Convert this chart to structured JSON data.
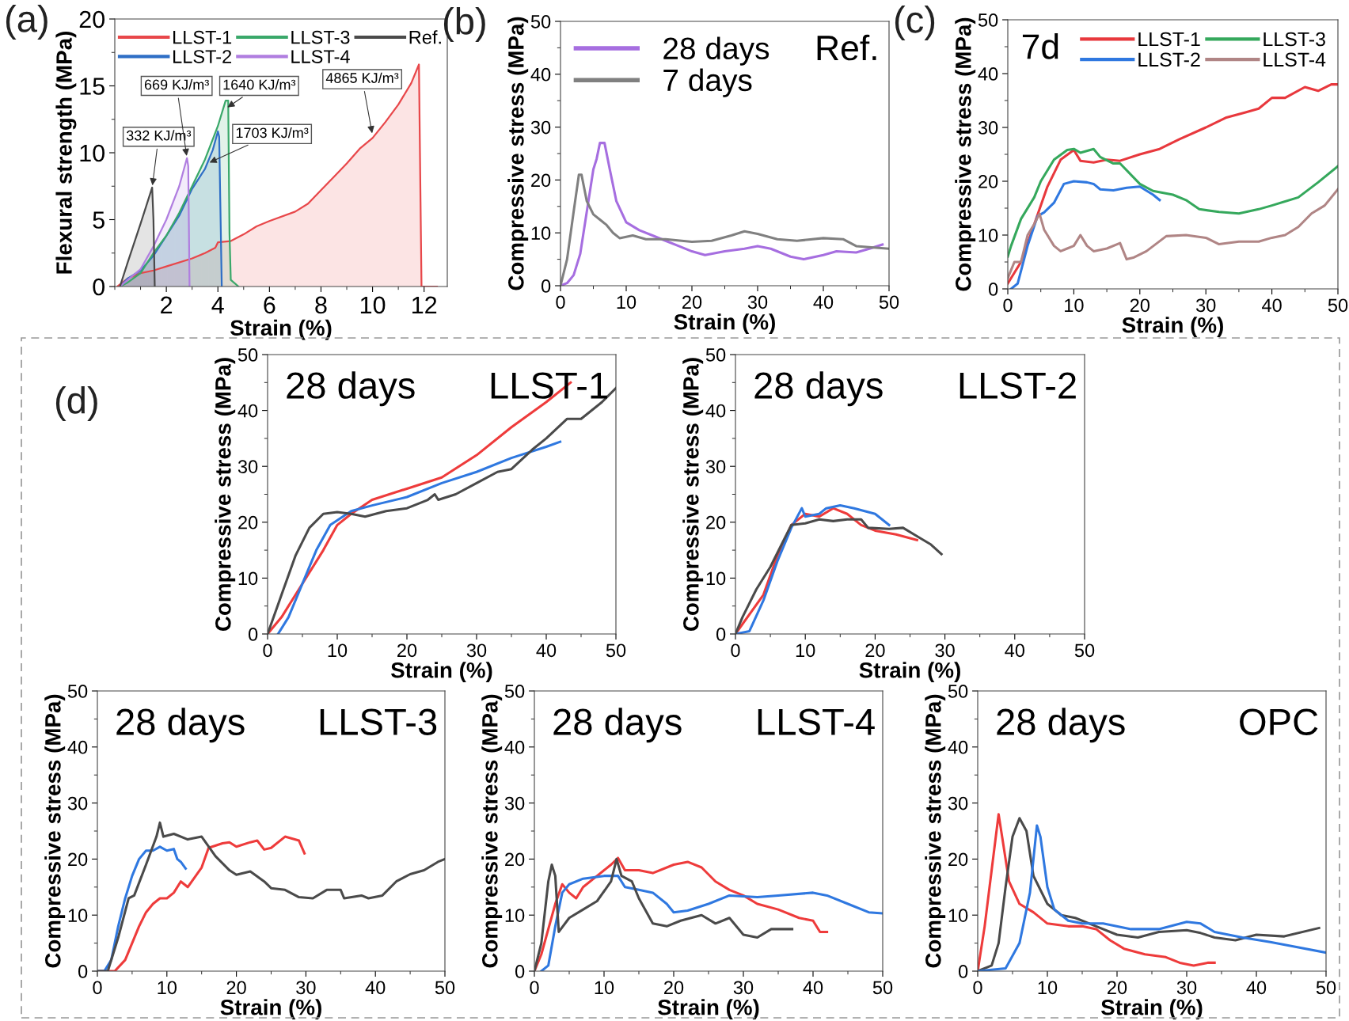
{
  "chart_data": [
    {
      "type": "area",
      "title": "(a)",
      "xlabel": "Strain (%)",
      "ylabel": "Flexural strength (MPa)",
      "xlim": [
        0,
        12.9
      ],
      "ylim": [
        0,
        20
      ],
      "xticks": [
        2,
        4,
        6,
        8,
        10,
        12
      ],
      "yticks": [
        0,
        5,
        10,
        15,
        20
      ],
      "legend": "top",
      "grid": false,
      "annotations": [
        {
          "text": "332 KJ/m³",
          "x": 1.45,
          "y": 7.4
        },
        {
          "text": "669 KJ/m³",
          "x": 2.8,
          "y": 9.6
        },
        {
          "text": "1640 KJ/m³",
          "x": 4.3,
          "y": 13.3
        },
        {
          "text": "1703 KJ/m³",
          "x": 3.6,
          "y": 9.2
        },
        {
          "text": "4865 KJ/m³",
          "x": 10.0,
          "y": 11.3
        }
      ],
      "series": [
        {
          "name": "LLST-1",
          "color": "#e8474a",
          "x": [
            0.1,
            0.5,
            1,
            1.5,
            2,
            3,
            3.5,
            3.9,
            4,
            4.5,
            5,
            5.5,
            6,
            7,
            7.5,
            8,
            8.5,
            9,
            9.5,
            10,
            10.5,
            11,
            11.5,
            11.8,
            11.9,
            12.5
          ],
          "values": [
            0,
            0.6,
            1.0,
            1.2,
            1.5,
            2.1,
            2.5,
            2.9,
            3.3,
            3.4,
            3.9,
            4.5,
            4.9,
            5.6,
            6.2,
            7.2,
            8.2,
            9.2,
            10.3,
            11.1,
            12.3,
            13.6,
            15.2,
            16.6,
            0,
            0
          ]
        },
        {
          "name": "LLST-2",
          "color": "#2f6fc6",
          "x": [
            0.2,
            0.5,
            1,
            1.5,
            2,
            2.5,
            3,
            3.5,
            3.8,
            4.0,
            4.05,
            4.15
          ],
          "values": [
            0,
            0.6,
            1.2,
            2.3,
            3.8,
            5.3,
            7.3,
            8.8,
            10.2,
            11.6,
            11.2,
            0
          ]
        },
        {
          "name": "LLST-3",
          "color": "#3aa86a",
          "x": [
            0.2,
            0.5,
            1,
            1.5,
            2,
            2.5,
            3,
            3.5,
            4,
            4.3,
            4.4,
            4.45,
            4.5,
            4.8
          ],
          "values": [
            0,
            0.3,
            1.0,
            2.5,
            3.8,
            5.5,
            7.5,
            9.5,
            12,
            13.9,
            13.9,
            4,
            0.5,
            0
          ]
        },
        {
          "name": "LLST-4",
          "color": "#b07ee0",
          "x": [
            0.2,
            0.5,
            1,
            1.5,
            2,
            2.5,
            2.8,
            2.85,
            2.9
          ],
          "values": [
            0,
            0.5,
            1.3,
            3.0,
            5.0,
            7.5,
            9.6,
            9.0,
            0
          ]
        },
        {
          "name": "Ref.",
          "color": "#4a4a4a",
          "x": [
            0.2,
            0.5,
            1,
            1.45,
            1.5,
            1.55
          ],
          "values": [
            0,
            1.8,
            4.7,
            7.4,
            5,
            0
          ]
        }
      ]
    },
    {
      "type": "line",
      "title": "(b)",
      "xlabel": "Strain (%)",
      "ylabel": "Compressive stress (MPa)",
      "xlim": [
        0,
        50
      ],
      "ylim": [
        0,
        50
      ],
      "xticks": [
        0,
        10,
        20,
        30,
        40,
        50
      ],
      "yticks": [
        0,
        10,
        20,
        30,
        40,
        50
      ],
      "legend": "top left",
      "grid": false,
      "annotations": [
        "Ref."
      ],
      "series": [
        {
          "name": "28 days",
          "color": "#a66ee0",
          "x": [
            0,
            1,
            2,
            3,
            4,
            5,
            5.5,
            6,
            6.7,
            7.5,
            8.5,
            10,
            12,
            14,
            16,
            18,
            20,
            22,
            25,
            28,
            30,
            32,
            35,
            37,
            40,
            42,
            45,
            47,
            49
          ],
          "values": [
            0,
            0.5,
            2,
            6,
            14,
            22,
            24,
            27,
            27,
            22,
            16,
            12,
            10.5,
            9.5,
            8.5,
            7.5,
            6.5,
            5.8,
            6.5,
            7,
            7.5,
            7,
            5.5,
            5,
            5.8,
            6.5,
            6.3,
            7,
            7.8
          ]
        },
        {
          "name": "7 days",
          "color": "#808080",
          "x": [
            0,
            1,
            2,
            2.8,
            3.2,
            4,
            5,
            6,
            7,
            8,
            9,
            11,
            13,
            16,
            20,
            23,
            26,
            28,
            30,
            33,
            36,
            40,
            43,
            45,
            50
          ],
          "values": [
            0,
            5,
            14,
            21,
            21,
            16,
            13.5,
            12.5,
            11.5,
            10,
            9,
            9.5,
            8.8,
            8.8,
            8.3,
            8.5,
            9.5,
            10.3,
            9.8,
            8.8,
            8.5,
            9,
            8.8,
            7.5,
            7
          ]
        }
      ]
    },
    {
      "type": "line",
      "title": "(c)",
      "xlabel": "Strain (%)",
      "ylabel": "Compressive stress (MPa)",
      "xlim": [
        0,
        50
      ],
      "ylim": [
        0,
        50
      ],
      "xticks": [
        0,
        10,
        20,
        30,
        40,
        50
      ],
      "yticks": [
        0,
        10,
        20,
        30,
        40,
        50
      ],
      "legend": "top right",
      "grid": false,
      "annotations": [
        "7d"
      ],
      "series": [
        {
          "name": "LLST-1",
          "color": "#e8383d",
          "x": [
            0,
            2,
            4,
            6,
            8,
            10,
            11,
            13,
            15,
            17,
            20,
            23,
            26,
            30,
            33,
            36,
            38,
            40,
            42,
            45,
            47,
            49,
            50
          ],
          "values": [
            1,
            5,
            12,
            19,
            24,
            25.8,
            23.8,
            23.5,
            24,
            23.8,
            25,
            26,
            27.8,
            30,
            31.8,
            32.8,
            33.5,
            35.5,
            35.5,
            37.5,
            36.8,
            38,
            38
          ]
        },
        {
          "name": "LLST-2",
          "color": "#2f78e0",
          "x": [
            0.5,
            1.5,
            3,
            4.5,
            5.5,
            7,
            8.5,
            10,
            12,
            13,
            14,
            16,
            18,
            20,
            22,
            23
          ],
          "values": [
            0,
            1,
            8,
            13.5,
            14.2,
            16,
            19.5,
            20,
            19.8,
            19.5,
            18.5,
            18.3,
            18.8,
            19,
            17.5,
            16.5
          ]
        },
        {
          "name": "LLST-3",
          "color": "#35a85c",
          "x": [
            0,
            0.5,
            2,
            4,
            5,
            7,
            9,
            10,
            11,
            13,
            14,
            16,
            17,
            20,
            22,
            25,
            27,
            29,
            32,
            35,
            38,
            40,
            44,
            47,
            50
          ],
          "values": [
            6,
            8,
            13,
            17,
            20,
            24,
            25.8,
            26,
            25.3,
            26,
            24.5,
            23.3,
            23.3,
            19.5,
            18.2,
            17.5,
            16.5,
            14.8,
            14.3,
            14,
            14.8,
            15.5,
            17,
            19.8,
            22.8
          ]
        },
        {
          "name": "LLST-4",
          "color": "#b08585",
          "x": [
            0,
            1,
            2,
            3,
            4,
            4.8,
            5.5,
            7,
            8,
            9,
            10,
            11,
            12,
            13,
            15,
            17,
            18,
            19,
            21,
            24,
            27,
            30,
            32,
            35,
            38,
            40,
            42,
            44,
            46,
            48,
            50
          ],
          "values": [
            2,
            5,
            5,
            10,
            12,
            14,
            11,
            8,
            7,
            7.5,
            8,
            10,
            8,
            7,
            7.5,
            8.5,
            5.5,
            5.8,
            7,
            9.8,
            10,
            9.5,
            8.3,
            8.8,
            8.8,
            9.5,
            10,
            11.5,
            14,
            15.5,
            18.5
          ]
        }
      ]
    },
    {
      "type": "line",
      "title": "(d)",
      "xlabel": "Strain (%)",
      "ylabel": "Compressive stress (MPa)",
      "xlim": [
        0,
        50
      ],
      "ylim": [
        0,
        50
      ],
      "xticks": [
        0,
        10,
        20,
        30,
        40,
        50
      ],
      "yticks": [
        0,
        10,
        20,
        30,
        40,
        50
      ],
      "grid": false,
      "annotations": [
        "28 days",
        "LLST-1"
      ],
      "series": [
        {
          "color": "#ee3b3b",
          "x": [
            0,
            2,
            5,
            8,
            10,
            12,
            15,
            20,
            25,
            30,
            35,
            40,
            43.5
          ],
          "values": [
            0,
            3,
            9,
            15,
            19.5,
            21.5,
            24,
            26,
            28,
            32,
            37,
            41.5,
            45
          ]
        },
        {
          "color": "#2f78e0",
          "x": [
            1.5,
            3,
            5,
            7,
            9,
            12,
            15,
            20,
            25,
            30,
            35,
            40,
            42
          ],
          "values": [
            0,
            3,
            9,
            15,
            19.5,
            22,
            23,
            24.5,
            27,
            29,
            31.5,
            33.5,
            34.4
          ]
        },
        {
          "color": "#4a4a4a",
          "x": [
            0,
            2,
            4,
            6,
            8,
            10,
            12,
            14,
            17,
            20,
            23,
            24,
            24.5,
            27,
            30,
            33,
            35,
            38,
            40,
            43,
            45,
            48,
            50
          ],
          "values": [
            0,
            7,
            14,
            19,
            21.5,
            21.8,
            21.5,
            21,
            22,
            22.5,
            24,
            25,
            24,
            25,
            27,
            29,
            29.5,
            33,
            35,
            38.5,
            38.5,
            41.5,
            44
          ]
        }
      ]
    },
    {
      "type": "line",
      "xlabel": "Strain (%)",
      "ylabel": "Compressive stress (MPa)",
      "xlim": [
        0,
        50
      ],
      "ylim": [
        0,
        50
      ],
      "xticks": [
        0,
        10,
        20,
        30,
        40,
        50
      ],
      "yticks": [
        0,
        10,
        20,
        30,
        40,
        50
      ],
      "grid": false,
      "annotations": [
        "28 days",
        "LLST-2"
      ],
      "series": [
        {
          "color": "#ee3b3b",
          "x": [
            0,
            4,
            6,
            8,
            10,
            12,
            14,
            16,
            18,
            20,
            23,
            26
          ],
          "values": [
            0,
            7,
            14,
            19.5,
            21.5,
            21,
            22.5,
            21.5,
            19.5,
            18.5,
            17.8,
            16.8
          ]
        },
        {
          "color": "#2f78e0",
          "x": [
            0,
            2,
            4,
            6,
            8,
            9.5,
            10,
            12,
            13,
            15,
            17,
            20,
            22
          ],
          "values": [
            0,
            0.5,
            6,
            13,
            19,
            22.5,
            21,
            21.5,
            22.5,
            23,
            22.5,
            21.5,
            19.5
          ]
        },
        {
          "color": "#4a4a4a",
          "x": [
            0,
            1,
            3,
            5,
            7,
            8,
            10,
            12,
            14,
            16,
            18,
            19,
            22,
            24,
            26,
            28,
            29.5
          ],
          "values": [
            0,
            3,
            8,
            12,
            17,
            19.5,
            19.8,
            20.5,
            20.2,
            20.5,
            20.5,
            19,
            18.8,
            19,
            17.5,
            16,
            14.3
          ]
        }
      ]
    },
    {
      "type": "line",
      "xlabel": "Strain (%)",
      "ylabel": "Compressive stress (MPa)",
      "xlim": [
        0,
        50
      ],
      "ylim": [
        0,
        50
      ],
      "xticks": [
        0,
        10,
        20,
        30,
        40,
        50
      ],
      "yticks": [
        0,
        10,
        20,
        30,
        40,
        50
      ],
      "grid": false,
      "annotations": [
        "28 days",
        "LLST-3"
      ],
      "series": [
        {
          "color": "#ee3b3b",
          "x": [
            0,
            2.5,
            4,
            5,
            6,
            7,
            8,
            9,
            10,
            11,
            12,
            13,
            15,
            16,
            18,
            19,
            20,
            22,
            23,
            24,
            25,
            27,
            29,
            29.8
          ],
          "values": [
            0,
            0,
            2,
            5,
            8,
            10.5,
            12,
            13,
            13,
            14,
            16,
            15,
            18.5,
            22,
            22.8,
            23,
            22.2,
            23,
            23.3,
            21.7,
            22,
            24,
            23.3,
            21
          ]
        },
        {
          "color": "#2f78e0",
          "x": [
            0,
            1,
            2,
            3,
            4,
            5,
            6,
            7,
            8,
            9,
            10,
            11,
            11.5,
            12,
            12.7
          ],
          "values": [
            0,
            0,
            2,
            8,
            13,
            17,
            20,
            21.5,
            21.5,
            22.2,
            21.5,
            21.8,
            20,
            19.5,
            18.3
          ]
        },
        {
          "color": "#4a4a4a",
          "x": [
            0,
            1.5,
            3,
            4.5,
            5.3,
            7,
            8.5,
            9,
            9.5,
            11,
            13,
            15,
            17,
            19,
            20,
            22,
            24,
            25,
            27,
            29,
            31,
            33,
            35,
            35.5,
            38,
            39,
            41,
            43,
            45,
            47,
            49,
            50
          ],
          "values": [
            0,
            0,
            6,
            13,
            13.5,
            19,
            24,
            26.5,
            24,
            24.5,
            23.5,
            24,
            20.5,
            18,
            17.2,
            17.8,
            16,
            14.8,
            14.5,
            13.2,
            13,
            14.5,
            14.5,
            13,
            13.5,
            13,
            13.5,
            16,
            17.3,
            18,
            19.5,
            20
          ]
        }
      ]
    },
    {
      "type": "line",
      "xlabel": "Strain (%)",
      "ylabel": "Compressive stress (MPa)",
      "xlim": [
        0,
        50
      ],
      "ylim": [
        0,
        50
      ],
      "xticks": [
        0,
        10,
        20,
        30,
        40,
        50
      ],
      "yticks": [
        0,
        10,
        20,
        30,
        40,
        50
      ],
      "grid": false,
      "annotations": [
        "28 days",
        "LLST-4"
      ],
      "series": [
        {
          "color": "#ee3b3b",
          "x": [
            0,
            1,
            3,
            4,
            5,
            6,
            7,
            9,
            11,
            12,
            13,
            15,
            17,
            20,
            22,
            24,
            26,
            28,
            30,
            32,
            35,
            38,
            40,
            41,
            42
          ],
          "values": [
            0,
            3,
            12,
            15.5,
            14,
            13,
            15,
            17,
            19,
            20.2,
            18,
            18,
            17.5,
            19,
            19.5,
            18.5,
            16,
            14.5,
            13.5,
            12,
            11,
            9.5,
            9,
            7,
            7
          ]
        },
        {
          "color": "#2f78e0",
          "x": [
            1,
            2,
            3,
            4,
            5,
            7,
            10,
            12,
            13,
            15,
            17,
            19,
            20,
            22,
            25,
            28,
            32,
            35,
            40,
            42,
            45,
            48,
            50
          ],
          "values": [
            0,
            1,
            8,
            14,
            15.5,
            16.5,
            17,
            17,
            15,
            14.5,
            14,
            12,
            10.5,
            10.8,
            12,
            13.5,
            13.2,
            13.5,
            14,
            13.5,
            12,
            10.5,
            10.3
          ]
        },
        {
          "color": "#4a4a4a",
          "x": [
            0,
            1,
            2,
            2.5,
            3,
            3.5,
            5,
            7,
            9,
            11,
            11.8,
            12.5,
            14,
            15,
            17,
            19,
            21,
            24,
            26,
            28,
            30,
            32,
            34,
            37
          ],
          "values": [
            0,
            5,
            16,
            19,
            17,
            7,
            9.5,
            11,
            12.5,
            16,
            20,
            17,
            16,
            13,
            8.5,
            8,
            9,
            10,
            8.5,
            9.5,
            6.5,
            6,
            7.5,
            7.5
          ]
        }
      ]
    },
    {
      "type": "line",
      "xlabel": "Strain (%)",
      "ylabel": "Compressive stress (MPa)",
      "xlim": [
        0,
        50
      ],
      "ylim": [
        0,
        50
      ],
      "xticks": [
        0,
        10,
        20,
        30,
        40,
        50
      ],
      "yticks": [
        0,
        10,
        20,
        30,
        40,
        50
      ],
      "grid": false,
      "annotations": [
        "28 days",
        "OPC"
      ],
      "series": [
        {
          "color": "#ee3b3b",
          "x": [
            0,
            1,
            2,
            3,
            3.5,
            4.5,
            6,
            8,
            10,
            13,
            15,
            17,
            19,
            21,
            24,
            27,
            29,
            31,
            33,
            34
          ],
          "values": [
            0,
            8,
            18,
            28,
            24,
            16,
            12,
            10.5,
            8.5,
            8,
            8,
            7.5,
            5.5,
            4,
            3,
            2.5,
            1.5,
            1,
            1.5,
            1.5
          ]
        },
        {
          "color": "#4a4a4a",
          "x": [
            0,
            2,
            3,
            4,
            5,
            6,
            7,
            8,
            10,
            12,
            14,
            17,
            20,
            23,
            26,
            30,
            32,
            34,
            37,
            40,
            44,
            49
          ],
          "values": [
            0,
            1,
            5,
            15,
            24,
            27.3,
            25,
            17,
            12,
            10,
            9.5,
            8,
            6.5,
            6,
            7,
            7.3,
            6.8,
            6,
            5.5,
            6.5,
            6.2,
            7.7
          ]
        },
        {
          "color": "#2f78e0",
          "x": [
            0,
            4,
            6,
            7.5,
            8.5,
            9,
            10,
            11,
            13,
            15,
            18,
            22,
            26,
            30,
            32,
            34,
            38,
            42,
            45,
            50
          ],
          "values": [
            0,
            0.5,
            5,
            14,
            26,
            24,
            15,
            11,
            9,
            8.5,
            8.5,
            7.5,
            7.5,
            8.8,
            8.5,
            7,
            6,
            5.2,
            4.5,
            3.3
          ]
        }
      ]
    }
  ]
}
